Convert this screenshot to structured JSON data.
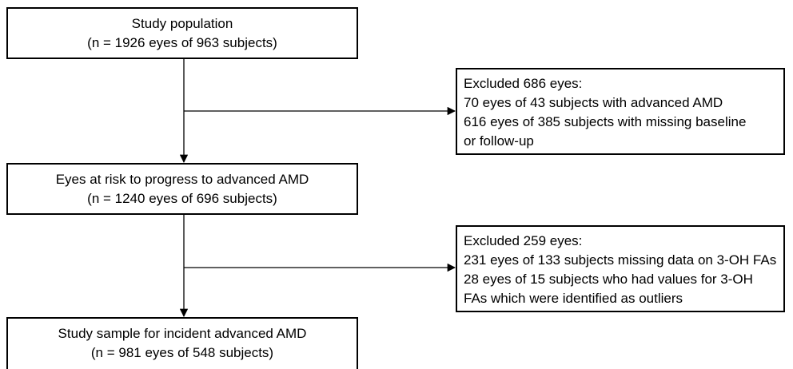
{
  "flowchart": {
    "study_population": {
      "title": "Study population",
      "count": "(n = 1926 eyes of 963 subjects)"
    },
    "exclusion_1": {
      "lines": [
        "Excluded 686 eyes:",
        "70 eyes of 43 subjects with advanced AMD",
        "616 eyes of 385 subjects with missing baseline",
        "or follow-up"
      ]
    },
    "eyes_at_risk": {
      "title": "Eyes at risk to progress to advanced AMD",
      "count": "(n = 1240 eyes of 696 subjects)"
    },
    "exclusion_2": {
      "lines": [
        "Excluded 259 eyes:",
        "231 eyes of 133 subjects missing data on 3-OH FAs",
        "28 eyes of 15 subjects who had values for 3-OH",
        "FAs which were identified as outliers"
      ]
    },
    "study_sample": {
      "title": "Study sample for incident advanced AMD",
      "count": "(n = 981 eyes of 548 subjects)"
    }
  }
}
